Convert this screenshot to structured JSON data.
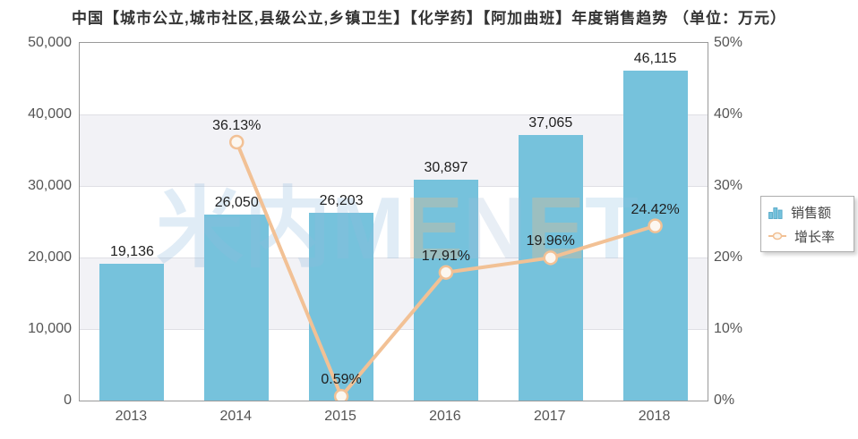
{
  "title": "中国【城市公立,城市社区,县级公立,乡镇卫生】【化学药】【阿加曲班】年度销售趋势 （单位：万元）",
  "watermark": {
    "text": "米内MENET",
    "parts": [
      {
        "text": "米内M",
        "color": "rgba(145,185,222,0.28)"
      },
      {
        "text": "E",
        "color": "rgba(244,186,128,0.30)"
      },
      {
        "text": "N",
        "color": "rgba(165,190,215,0.26)"
      },
      {
        "text": "E",
        "color": "rgba(244,186,128,0.30)"
      },
      {
        "text": "T",
        "color": "rgba(145,195,225,0.28)"
      }
    ]
  },
  "legend": {
    "items": [
      {
        "label": "销售额",
        "type": "bar"
      },
      {
        "label": "增长率",
        "type": "line"
      }
    ]
  },
  "chart_data": {
    "type": "bar+line",
    "title": "中国【城市公立,城市社区,县级公立,乡镇卫生】【化学药】【阿加曲班】年度销售趋势",
    "unit": "（单位：万元）",
    "categories": [
      "2013",
      "2014",
      "2015",
      "2016",
      "2017",
      "2018"
    ],
    "series": [
      {
        "name": "销售额",
        "type": "bar",
        "axis": "left",
        "values": [
          19136,
          26050,
          26203,
          30897,
          37065,
          46115
        ],
        "labels": [
          "19,136",
          "26,050",
          "26,203",
          "30,897",
          "37,065",
          "46,115"
        ],
        "color": "#76c2dc"
      },
      {
        "name": "增长率",
        "type": "line",
        "axis": "right",
        "values": [
          null,
          36.13,
          0.59,
          17.91,
          19.96,
          24.42
        ],
        "labels": [
          null,
          "36.13%",
          "0.59%",
          "17.91%",
          "19.96%",
          "24.42%"
        ],
        "color": "#f2c195"
      }
    ],
    "left_axis": {
      "min": 0,
      "max": 50000,
      "ticks": [
        "0",
        "10,000",
        "20,000",
        "30,000",
        "40,000",
        "50,000"
      ]
    },
    "right_axis": {
      "min": 0,
      "max": 50,
      "ticks": [
        "0%",
        "10%",
        "20%",
        "30%",
        "40%",
        "50%"
      ]
    },
    "grid": true,
    "legend_position": "right"
  },
  "colors": {
    "bar": "#76c2dc",
    "line": "#f2c195",
    "marker_fill": "#fcf7f0",
    "band": "#f2f2f6",
    "gridline": "#dfdfe5",
    "plot_border": "#9a9a9a",
    "value_label": "#1f1f1f",
    "axis_text": "#555555",
    "title_text": "#333333",
    "legend_icon_bar_stroke": "#4ba3c4"
  }
}
